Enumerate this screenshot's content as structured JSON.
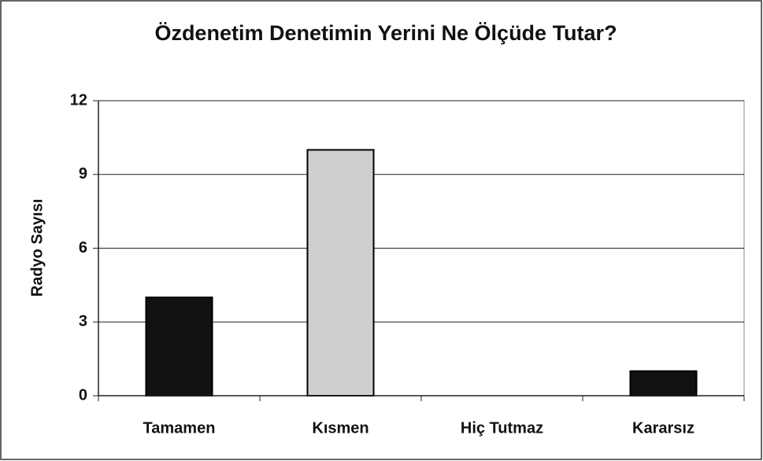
{
  "chart_data": {
    "type": "bar",
    "title": "Özdenetim Denetimin Yerini Ne Ölçüde Tutar?",
    "y_label": "Radyo Sayısı",
    "categories": [
      "Tamamen",
      "Kısmen",
      "Hiç Tutmaz",
      "Kararsız"
    ],
    "values": [
      4,
      10,
      0,
      1
    ],
    "colors": [
      "#111111",
      "#cfcfcf",
      "#111111",
      "#111111"
    ],
    "ylim": [
      0,
      12
    ],
    "yticks": [
      0,
      3,
      6,
      9,
      12
    ],
    "grid": true
  }
}
